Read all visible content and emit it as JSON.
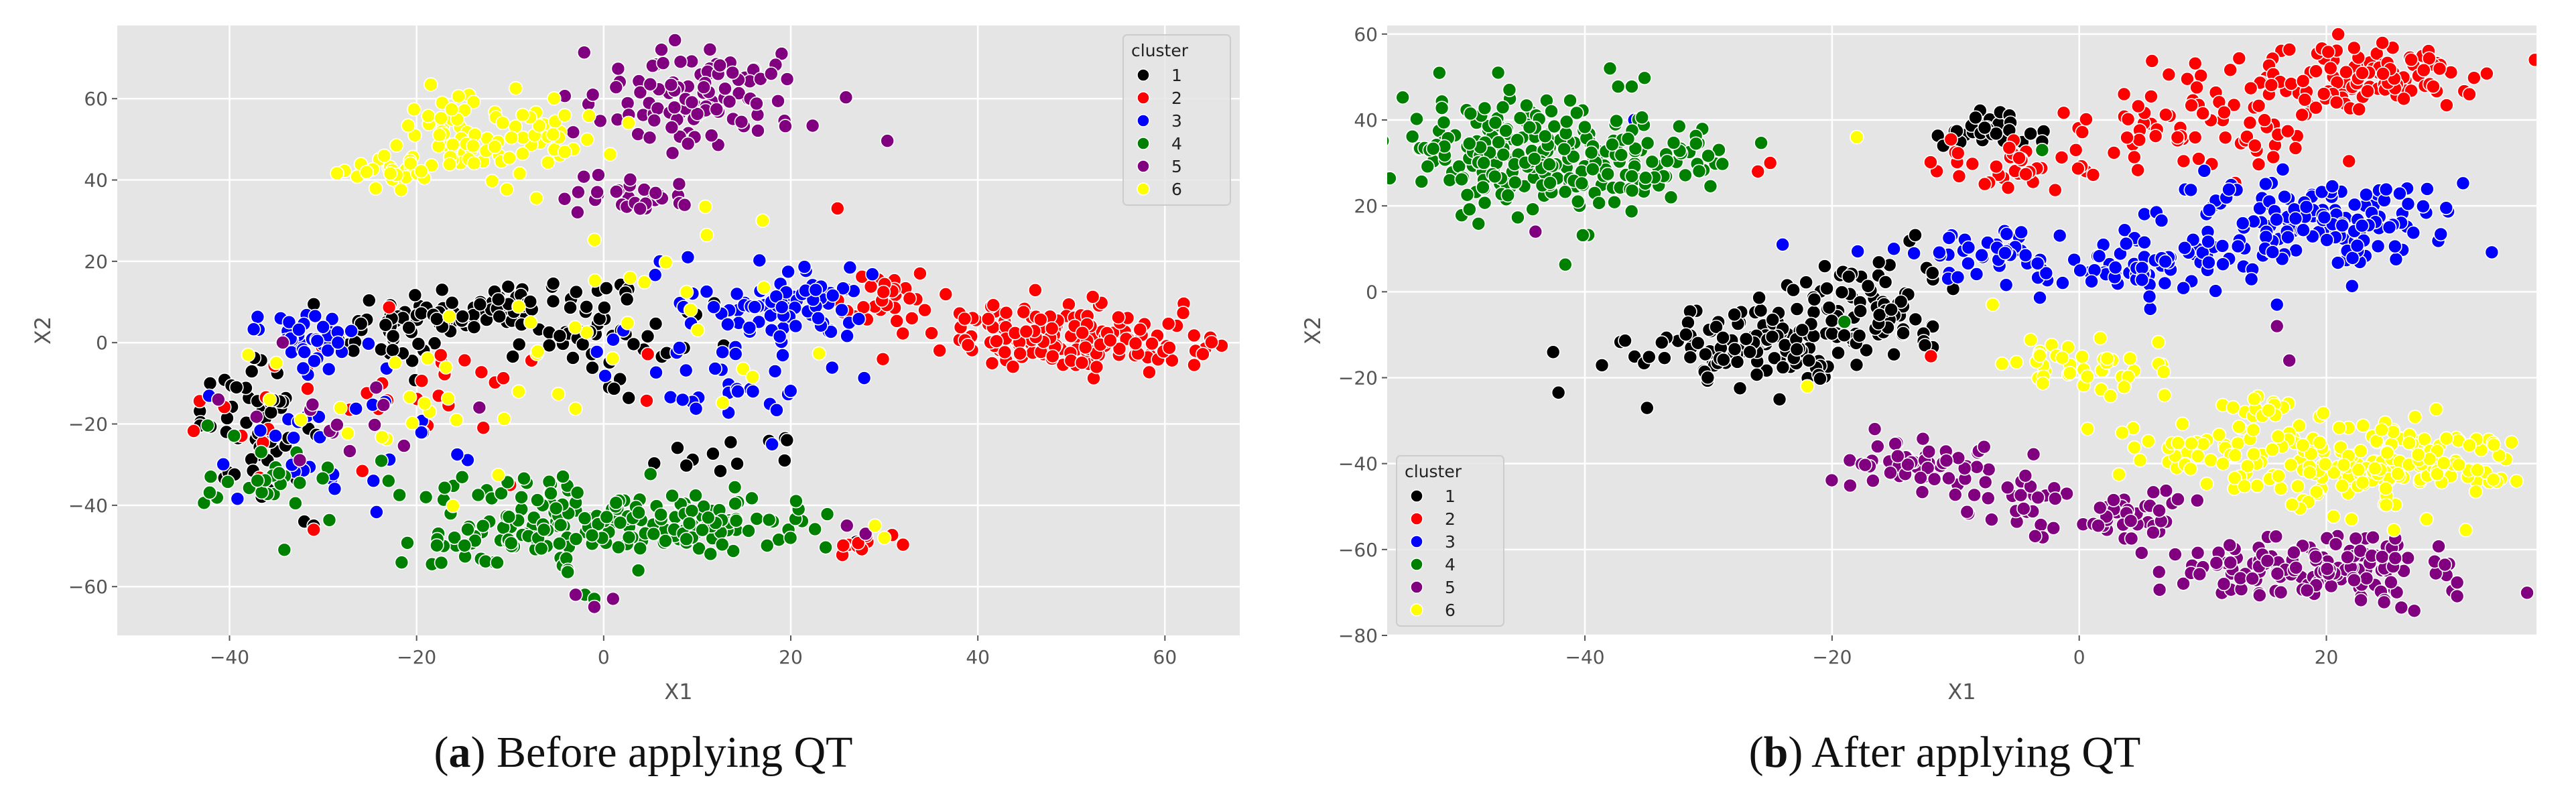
{
  "chart_data": [
    {
      "type": "scatter",
      "panel_label": "a",
      "caption": "Before applying QT",
      "xlabel": "X1",
      "ylabel": "X2",
      "xlim": [
        -52,
        68
      ],
      "ylim": [
        -72,
        78
      ],
      "xticks": [
        -40,
        -20,
        0,
        20,
        40,
        60
      ],
      "yticks": [
        -60,
        -40,
        -20,
        0,
        20,
        40,
        60
      ],
      "grid": true,
      "legend": {
        "title": "cluster",
        "placement": "top-right"
      },
      "series": [
        {
          "name": "1",
          "color": "#000000",
          "clusters": [
            {
              "cx": -10,
              "cy": 8,
              "sx": 6,
              "sy": 4,
              "n": 90
            },
            {
              "cx": -22,
              "cy": 3,
              "sx": 4,
              "sy": 4,
              "n": 45
            },
            {
              "cx": -37,
              "cy": -20,
              "sx": 3,
              "sy": 7,
              "n": 55
            },
            {
              "cx": 5,
              "cy": -2,
              "sx": 7,
              "sy": 8,
              "n": 25
            },
            {
              "cx": 12,
              "cy": -27,
              "sx": 6,
              "sy": 2,
              "n": 12
            }
          ],
          "points": [
            [
              -32,
              -44
            ],
            [
              -31,
              -45
            ],
            [
              27,
              -49
            ]
          ]
        },
        {
          "name": "2",
          "color": "#ff0000",
          "clusters": [
            {
              "cx": 50,
              "cy": 1,
              "sx": 7,
              "sy": 4,
              "n": 170
            },
            {
              "cx": 30,
              "cy": 10,
              "sx": 3,
              "sy": 4,
              "n": 30
            },
            {
              "cx": -25,
              "cy": -13,
              "sx": 11,
              "sy": 9,
              "n": 35
            },
            {
              "cx": 27,
              "cy": -50,
              "sx": 2,
              "sy": 2,
              "n": 10
            }
          ],
          "points": [
            [
              25,
              33
            ],
            [
              -10,
              -35
            ],
            [
              -31,
              -46
            ]
          ]
        },
        {
          "name": "3",
          "color": "#0000ff",
          "clusters": [
            {
              "cx": 20,
              "cy": 10,
              "sx": 5,
              "sy": 5,
              "n": 75
            },
            {
              "cx": -32,
              "cy": 2,
              "sx": 3,
              "sy": 4,
              "n": 40
            },
            {
              "cx": 12,
              "cy": -8,
              "sx": 6,
              "sy": 6,
              "n": 35
            },
            {
              "cx": -28,
              "cy": -25,
              "sx": 8,
              "sy": 8,
              "n": 30
            }
          ],
          "points": [
            [
              6,
              20
            ],
            [
              9,
              21
            ],
            [
              18,
              -25
            ]
          ]
        },
        {
          "name": "4",
          "color": "#008000",
          "clusters": [
            {
              "cx": 5,
              "cy": -45,
              "sx": 10,
              "sy": 4,
              "n": 150
            },
            {
              "cx": -12,
              "cy": -50,
              "sx": 7,
              "sy": 3,
              "n": 40
            },
            {
              "cx": -8,
              "cy": -37,
              "sx": 5,
              "sy": 3,
              "n": 25
            },
            {
              "cx": -36,
              "cy": -35,
              "sx": 4,
              "sy": 5,
              "n": 25
            }
          ],
          "points": [
            [
              -23,
              -34
            ],
            [
              -19,
              -38
            ],
            [
              -2,
              -62
            ],
            [
              -1,
              -63
            ]
          ]
        },
        {
          "name": "5",
          "color": "#800080",
          "clusters": [
            {
              "cx": 10,
              "cy": 60,
              "sx": 6,
              "sy": 6,
              "n": 110
            },
            {
              "cx": 3,
              "cy": 36,
              "sx": 3,
              "sy": 2,
              "n": 30
            },
            {
              "cx": -25,
              "cy": -15,
              "sx": 10,
              "sy": 10,
              "n": 15
            }
          ],
          "points": [
            [
              -3,
              -62
            ],
            [
              -1,
              -65
            ],
            [
              1,
              -63
            ],
            [
              26,
              -45
            ],
            [
              28,
              -47
            ]
          ]
        },
        {
          "name": "6",
          "color": "#ffff00",
          "clusters": [
            {
              "cx": -12,
              "cy": 52,
              "sx": 6,
              "sy": 6,
              "n": 85
            },
            {
              "cx": -22,
              "cy": 42,
              "sx": 3,
              "sy": 2,
              "n": 30
            },
            {
              "cx": 4,
              "cy": 10,
              "sx": 9,
              "sy": 12,
              "n": 25
            },
            {
              "cx": -22,
              "cy": -22,
              "sx": 10,
              "sy": 8,
              "n": 20
            }
          ],
          "points": [
            [
              -35,
              -5
            ],
            [
              -38,
              -3
            ],
            [
              30,
              -48
            ],
            [
              29,
              -45
            ],
            [
              17,
              30
            ]
          ]
        }
      ]
    },
    {
      "type": "scatter",
      "panel_label": "b",
      "caption": "After applying QT",
      "xlabel": "X1",
      "ylabel": "X2",
      "xlim": [
        -56,
        37
      ],
      "ylim": [
        -80,
        62
      ],
      "xticks": [
        -40,
        -20,
        0,
        20
      ],
      "yticks": [
        -80,
        -60,
        -40,
        -20,
        0,
        20,
        40,
        60
      ],
      "grid": true,
      "legend": {
        "title": "cluster",
        "placement": "bottom-left"
      },
      "series": [
        {
          "name": "1",
          "color": "#000000",
          "clusters": [
            {
              "cx": -26,
              "cy": -12,
              "sx": 5,
              "sy": 5,
              "n": 130
            },
            {
              "cx": -17,
              "cy": -3,
              "sx": 3,
              "sy": 6,
              "n": 70
            },
            {
              "cx": -7,
              "cy": 38,
              "sx": 2,
              "sy": 2,
              "n": 35
            }
          ],
          "points": [
            [
              -11,
              34
            ],
            [
              -3,
              35
            ]
          ]
        },
        {
          "name": "2",
          "color": "#ff0000",
          "clusters": [
            {
              "cx": 22,
              "cy": 50,
              "sx": 6,
              "sy": 4,
              "n": 120
            },
            {
              "cx": 10,
              "cy": 38,
              "sx": 6,
              "sy": 4,
              "n": 70
            },
            {
              "cx": -6,
              "cy": 30,
              "sx": 3,
              "sy": 3,
              "n": 35
            }
          ],
          "points": [
            [
              -26,
              28
            ],
            [
              -25,
              30
            ],
            [
              -12,
              -15
            ]
          ]
        },
        {
          "name": "3",
          "color": "#0000ff",
          "clusters": [
            {
              "cx": 18,
              "cy": 16,
              "sx": 6,
              "sy": 5,
              "n": 150
            },
            {
              "cx": 5,
              "cy": 7,
              "sx": 6,
              "sy": 4,
              "n": 80
            },
            {
              "cx": -8,
              "cy": 8,
              "sx": 4,
              "sy": 3,
              "n": 35
            }
          ],
          "points": [
            [
              -36,
              40
            ],
            [
              -24,
              11
            ],
            [
              -15,
              10
            ],
            [
              16,
              -3
            ]
          ]
        },
        {
          "name": "4",
          "color": "#008000",
          "clusters": [
            {
              "cx": -45,
              "cy": 32,
              "sx": 5,
              "sy": 7,
              "n": 220
            },
            {
              "cx": -35,
              "cy": 30,
              "sx": 4,
              "sy": 5,
              "n": 60
            }
          ],
          "points": [
            [
              -3,
              33
            ],
            [
              -19,
              -7
            ]
          ]
        },
        {
          "name": "5",
          "color": "#800080",
          "clusters": [
            {
              "cx": 20,
              "cy": -65,
              "sx": 7,
              "sy": 4,
              "n": 150
            },
            {
              "cx": -12,
              "cy": -40,
              "sx": 3,
              "sy": 3,
              "n": 55
            },
            {
              "cx": 3,
              "cy": -53,
              "sx": 3,
              "sy": 3,
              "n": 40
            },
            {
              "cx": -5,
              "cy": -48,
              "sx": 3,
              "sy": 3,
              "n": 25
            }
          ],
          "points": [
            [
              -44,
              14
            ],
            [
              16,
              -8
            ],
            [
              17,
              -16
            ]
          ]
        },
        {
          "name": "6",
          "color": "#ffff00",
          "clusters": [
            {
              "cx": 24,
              "cy": -40,
              "sx": 5,
              "sy": 5,
              "n": 180
            },
            {
              "cx": 11,
              "cy": -38,
              "sx": 4,
              "sy": 4,
              "n": 50
            },
            {
              "cx": 0,
              "cy": -17,
              "sx": 3,
              "sy": 3,
              "n": 45
            },
            {
              "cx": 14,
              "cy": -27,
              "sx": 2,
              "sy": 2,
              "n": 15
            }
          ],
          "points": [
            [
              -18,
              36
            ],
            [
              -22,
              -22
            ],
            [
              -7,
              -3
            ]
          ]
        }
      ]
    }
  ]
}
